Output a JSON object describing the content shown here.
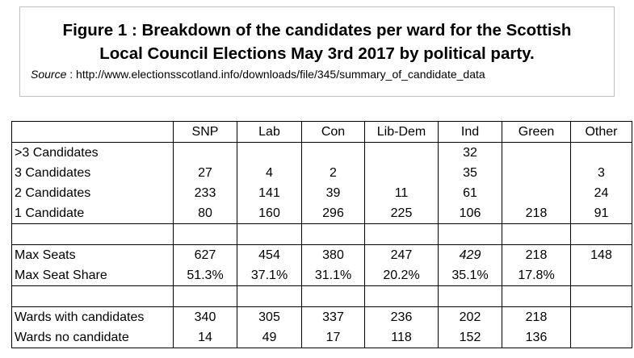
{
  "title": {
    "line1": "Figure 1 : Breakdown of the candidates per ward for the Scottish",
    "line2": "Local Council Elections May 3rd 2017 by political party.",
    "source_label": "Source",
    "source_text": " : http://www.electionsscotland.info/downloads/file/345/summary_of_candidate_data"
  },
  "table": {
    "headers": [
      "",
      "SNP",
      "Lab",
      "Con",
      "Lib-Dem",
      "Ind",
      "Green",
      "Other"
    ],
    "group1": [
      [
        "&gt;3 Candidates",
        "",
        "",
        "",
        "",
        "32",
        "",
        ""
      ],
      [
        "3 Candidates",
        "27",
        "4",
        "2",
        "",
        "35",
        "",
        "3"
      ],
      [
        "2 Candidates",
        "233",
        "141",
        "39",
        "11",
        "61",
        "",
        "24"
      ],
      [
        "1 Candidate",
        "80",
        "160",
        "296",
        "225",
        "106",
        "218",
        "91"
      ]
    ],
    "group2": [
      [
        "Max Seats",
        "627",
        "454",
        "380",
        "247",
        "429",
        "218",
        "148"
      ],
      [
        "Max Seat Share",
        "51.3%",
        "37.1%",
        "31.1%",
        "20.2%",
        "35.1%",
        "17.8%",
        ""
      ]
    ],
    "group3": [
      [
        "Wards with candidates",
        "340",
        "305",
        "337",
        "236",
        "202",
        "218",
        ""
      ],
      [
        "Wards no candidate",
        "14",
        "49",
        "17",
        "118",
        "152",
        "136",
        ""
      ]
    ]
  }
}
